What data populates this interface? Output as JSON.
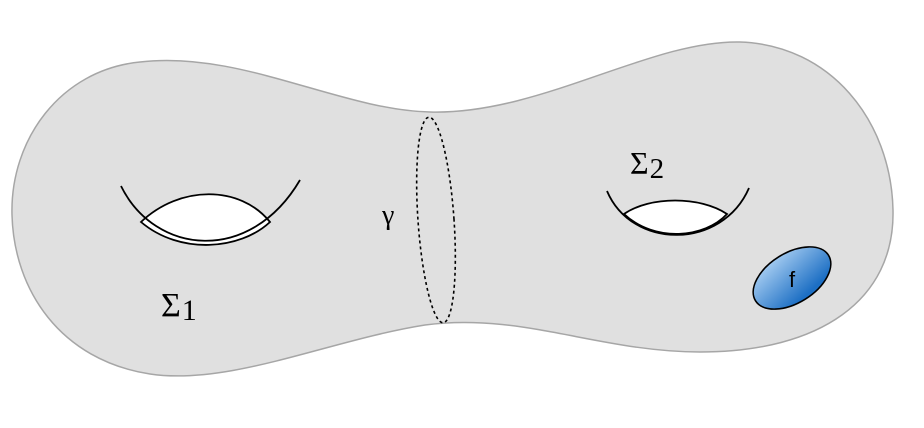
{
  "labels": {
    "sigma1": {
      "symbol": "Σ",
      "index": "1"
    },
    "sigma2": {
      "symbol": "Σ",
      "index": "2"
    },
    "gamma": "γ",
    "f": "f"
  },
  "colors": {
    "surface_fill": "#e0e0e0",
    "surface_stroke": "#a6a6a6",
    "hole_fill": "#ffffff",
    "line": "#000000",
    "blob_light": "#b4d6f6",
    "blob_dark": "#1d6fc4"
  }
}
